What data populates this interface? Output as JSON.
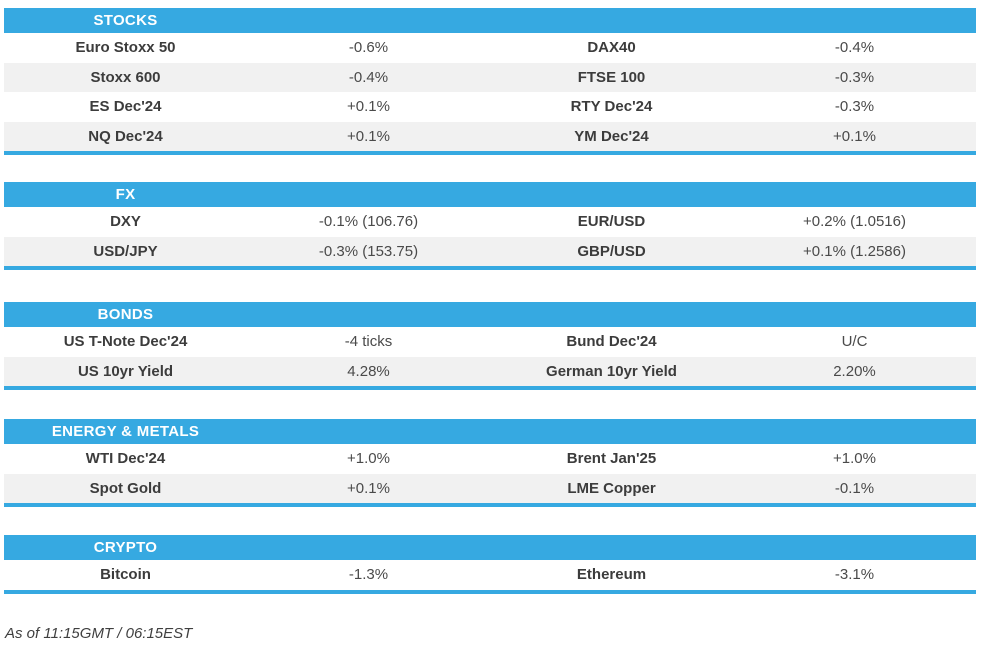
{
  "colors": {
    "accent": "#36a9e1",
    "row_alt": "#f1f1f1",
    "header_text": "#ffffff",
    "body_text": "#414141"
  },
  "sections": [
    {
      "title": "STOCKS",
      "rows": [
        {
          "l1": "Euro Stoxx 50",
          "v1": "-0.6%",
          "l2": "DAX40",
          "v2": "-0.4%"
        },
        {
          "l1": "Stoxx 600",
          "v1": "-0.4%",
          "l2": "FTSE 100",
          "v2": "-0.3%"
        },
        {
          "l1": "ES Dec'24",
          "v1": "+0.1%",
          "l2": "RTY Dec'24",
          "v2": "-0.3%"
        },
        {
          "l1": "NQ Dec'24",
          "v1": "+0.1%",
          "l2": "YM Dec'24",
          "v2": "+0.1%"
        }
      ]
    },
    {
      "title": "FX",
      "rows": [
        {
          "l1": "DXY",
          "v1": "-0.1% (106.76)",
          "l2": "EUR/USD",
          "v2": "+0.2% (1.0516)"
        },
        {
          "l1": "USD/JPY",
          "v1": "-0.3% (153.75)",
          "l2": "GBP/USD",
          "v2": "+0.1% (1.2586)"
        }
      ]
    },
    {
      "title": "BONDS",
      "rows": [
        {
          "l1": "US T-Note Dec'24",
          "v1": "-4 ticks",
          "l2": "Bund Dec'24",
          "v2": "U/C"
        },
        {
          "l1": "US 10yr Yield",
          "v1": "4.28%",
          "l2": "German 10yr Yield",
          "v2": "2.20%"
        }
      ]
    },
    {
      "title": "ENERGY & METALS",
      "rows": [
        {
          "l1": "WTI Dec'24",
          "v1": "+1.0%",
          "l2": "Brent Jan'25",
          "v2": "+1.0%"
        },
        {
          "l1": "Spot Gold",
          "v1": "+0.1%",
          "l2": "LME Copper",
          "v2": "-0.1%"
        }
      ]
    },
    {
      "title": "CRYPTO",
      "rows": [
        {
          "l1": "Bitcoin",
          "v1": "-1.3%",
          "l2": "Ethereum",
          "v2": "-3.1%"
        }
      ]
    }
  ],
  "footer": {
    "as_of": "As of 11:15GMT / 06:15EST"
  },
  "chart_data": [
    {
      "type": "table",
      "title": "STOCKS",
      "rows": [
        [
          "Euro Stoxx 50",
          "-0.6%",
          "DAX40",
          "-0.4%"
        ],
        [
          "Stoxx 600",
          "-0.4%",
          "FTSE 100",
          "-0.3%"
        ],
        [
          "ES Dec'24",
          "+0.1%",
          "RTY Dec'24",
          "-0.3%"
        ],
        [
          "NQ Dec'24",
          "+0.1%",
          "YM Dec'24",
          "+0.1%"
        ]
      ]
    },
    {
      "type": "table",
      "title": "FX",
      "rows": [
        [
          "DXY",
          "-0.1% (106.76)",
          "EUR/USD",
          "+0.2% (1.0516)"
        ],
        [
          "USD/JPY",
          "-0.3% (153.75)",
          "GBP/USD",
          "+0.1% (1.2586)"
        ]
      ]
    },
    {
      "type": "table",
      "title": "BONDS",
      "rows": [
        [
          "US T-Note Dec'24",
          "-4 ticks",
          "Bund Dec'24",
          "U/C"
        ],
        [
          "US 10yr Yield",
          "4.28%",
          "German 10yr Yield",
          "2.20%"
        ]
      ]
    },
    {
      "type": "table",
      "title": "ENERGY & METALS",
      "rows": [
        [
          "WTI Dec'24",
          "+1.0%",
          "Brent Jan'25",
          "+1.0%"
        ],
        [
          "Spot Gold",
          "+0.1%",
          "LME Copper",
          "-0.1%"
        ]
      ]
    },
    {
      "type": "table",
      "title": "CRYPTO",
      "rows": [
        [
          "Bitcoin",
          "-1.3%",
          "Ethereum",
          "-3.1%"
        ]
      ]
    }
  ]
}
